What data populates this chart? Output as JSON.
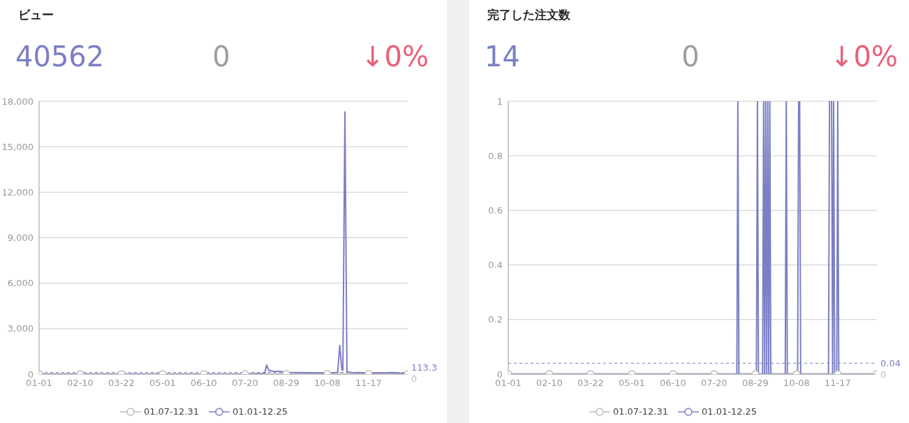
{
  "chart_data": [
    {
      "type": "line",
      "title": "ビュー",
      "annotations": [
        "40562",
        "0",
        "↓0%"
      ],
      "xlim": [
        "--01-01",
        "--12-25"
      ],
      "xticks": [
        {
          "value": "--01-01",
          "label": "01-01"
        },
        {
          "value": "--02-10",
          "label": "02-10"
        },
        {
          "value": "--03-22",
          "label": "03-22"
        },
        {
          "value": "--05-01",
          "label": "05-01"
        },
        {
          "value": "--06-10",
          "label": "06-10"
        },
        {
          "value": "--07-20",
          "label": "07-20"
        },
        {
          "value": "--08-29",
          "label": "08-29"
        },
        {
          "value": "--10-08",
          "label": "10-08"
        },
        {
          "value": "--11-17",
          "label": "11-17"
        }
      ],
      "ylim": [
        0,
        18000
      ],
      "yticks": [
        0,
        {
          "value": 3000,
          "label": "3,000"
        },
        {
          "value": 6000,
          "label": "6,000"
        },
        {
          "value": 9000,
          "label": "9,000"
        },
        {
          "value": 12000,
          "label": "12,000"
        },
        {
          "value": 15000,
          "label": "15,000"
        },
        {
          "value": 18000,
          "label": "18,000"
        }
      ],
      "grid": "y",
      "legend": "bottom",
      "ref_lines": [
        {
          "axis": "y",
          "value": 113.3,
          "label": "113.3",
          "color": "#7b7fc4",
          "line_style": "dashed"
        },
        {
          "axis": "y",
          "value": 0,
          "label": "0",
          "color": "#bdbdbd"
        }
      ],
      "series": [
        {
          "name": "01.07-12.31",
          "color": "#bdbdbd",
          "marker": "circle",
          "x": [
            "--01-01",
            "--02-10",
            "--03-22",
            "--05-01",
            "--06-10",
            "--07-20",
            "--08-29",
            "--10-08",
            "--11-17",
            "--12-25"
          ],
          "values": [
            0,
            0,
            0,
            0,
            0,
            0,
            0,
            0,
            0,
            0
          ]
        },
        {
          "name": "01.01-12.25",
          "color": "#7b7fc4",
          "marker": "none",
          "x": [
            "--01-01",
            "--02-10",
            "--03-22",
            "--05-01",
            "--06-10",
            "--07-20",
            "--08-08",
            "--08-10",
            "--08-12",
            "--08-16",
            "--08-22",
            "--08-29",
            "--09-10",
            "--09-20",
            "--10-01",
            "--10-08",
            "--10-15",
            "--10-18",
            "--10-20",
            "--10-22",
            "--10-23",
            "--10-25",
            "--10-27",
            "--11-01",
            "--11-17",
            "--12-01",
            "--12-10",
            "--12-18",
            "--12-25"
          ],
          "values": [
            0,
            0,
            0,
            0,
            0,
            0,
            50,
            600,
            250,
            200,
            180,
            120,
            100,
            90,
            80,
            90,
            100,
            120,
            1900,
            300,
            250,
            17300,
            150,
            100,
            90,
            80,
            100,
            60,
            80
          ]
        }
      ]
    },
    {
      "type": "line",
      "title": "完了した注文数",
      "annotations": [
        "14",
        "0",
        "↓0%"
      ],
      "xlim": [
        "--01-01",
        "--12-25"
      ],
      "xticks": [
        {
          "value": "--01-01",
          "label": "01-01"
        },
        {
          "value": "--02-10",
          "label": "02-10"
        },
        {
          "value": "--03-22",
          "label": "03-22"
        },
        {
          "value": "--05-01",
          "label": "05-01"
        },
        {
          "value": "--06-10",
          "label": "06-10"
        },
        {
          "value": "--07-20",
          "label": "07-20"
        },
        {
          "value": "--08-29",
          "label": "08-29"
        },
        {
          "value": "--10-08",
          "label": "10-08"
        },
        {
          "value": "--11-17",
          "label": "11-17"
        }
      ],
      "ylim": [
        0,
        1
      ],
      "yticks": [
        0,
        0.2,
        0.4,
        0.6,
        0.8,
        1
      ],
      "grid": "y",
      "legend": "bottom",
      "ref_lines": [
        {
          "axis": "y",
          "value": 0.04,
          "label": "0.04",
          "color": "#7b7fc4",
          "line_style": "dashed"
        },
        {
          "axis": "y",
          "value": 0,
          "label": "0",
          "color": "#bdbdbd"
        }
      ],
      "series": [
        {
          "name": "01.07-12.31",
          "color": "#bdbdbd",
          "marker": "circle",
          "x": [
            "--01-01",
            "--02-10",
            "--03-22",
            "--05-01",
            "--06-10",
            "--07-20",
            "--08-29",
            "--10-08",
            "--11-17",
            "--12-25"
          ],
          "values": [
            0,
            0,
            0,
            0,
            0,
            0,
            0,
            0,
            0,
            0
          ]
        },
        {
          "name": "01.01-12.25",
          "color": "#7b7fc4",
          "marker": "none",
          "x": [
            "--01-01",
            "--08-11",
            "--08-12",
            "--08-13",
            "--08-30",
            "--08-31",
            "--09-01",
            "--09-05",
            "--09-06",
            "--09-07",
            "--09-08",
            "--09-09",
            "--09-10",
            "--09-11",
            "--09-12",
            "--09-13",
            "--09-27",
            "--09-28",
            "--09-29",
            "--10-09",
            "--10-10",
            "--10-11",
            "--10-12",
            "--11-08",
            "--11-09",
            "--11-10",
            "--11-11",
            "--11-12",
            "--11-13",
            "--11-14",
            "--11-16",
            "--11-17",
            "--11-18",
            "--12-25"
          ],
          "values": [
            0,
            0,
            1,
            0,
            0,
            1,
            0,
            0,
            1,
            0,
            1,
            0,
            1,
            0,
            1,
            0,
            0,
            1,
            0,
            0,
            1,
            1,
            0,
            0,
            1,
            1,
            1,
            0,
            1,
            0,
            0,
            1,
            0,
            0
          ]
        }
      ]
    }
  ]
}
